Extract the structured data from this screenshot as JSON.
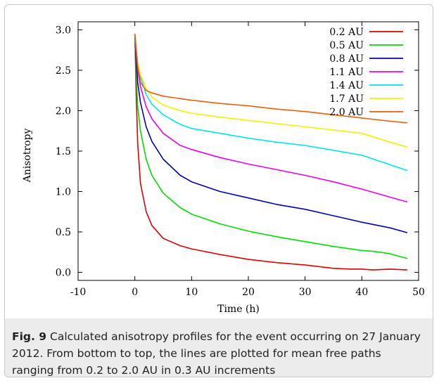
{
  "chart_data": {
    "type": "line",
    "xlabel": "Time (h)",
    "ylabel": "Anisotropy",
    "xlim": [
      -10,
      50
    ],
    "ylim": [
      -0.1,
      3.1
    ],
    "xticks": [
      "-10",
      "0",
      "10",
      "20",
      "30",
      "40",
      "50"
    ],
    "yticks": [
      "0.0",
      "0.5",
      "1.0",
      "1.5",
      "2.0",
      "2.5",
      "3.0"
    ],
    "grid": false,
    "legend_position": "top-right",
    "series": [
      {
        "name": "0.2 AU",
        "color": "#e00000",
        "x": [
          0.0,
          0.2,
          0.5,
          1,
          2,
          3,
          5,
          8,
          10,
          15,
          20,
          25,
          30,
          35,
          38,
          40,
          42,
          45,
          48
        ],
        "y": [
          2.95,
          2.3,
          1.6,
          1.1,
          0.75,
          0.58,
          0.42,
          0.33,
          0.29,
          0.22,
          0.16,
          0.12,
          0.09,
          0.05,
          0.04,
          0.04,
          0.03,
          0.04,
          0.03
        ]
      },
      {
        "name": "0.5 AU",
        "color": "#00dd00",
        "x": [
          0.0,
          0.2,
          0.5,
          1,
          2,
          3,
          5,
          8,
          10,
          15,
          20,
          25,
          30,
          35,
          40,
          42,
          45,
          48
        ],
        "y": [
          2.95,
          2.5,
          2.05,
          1.75,
          1.4,
          1.2,
          0.98,
          0.8,
          0.72,
          0.6,
          0.51,
          0.44,
          0.38,
          0.32,
          0.27,
          0.26,
          0.23,
          0.17
        ]
      },
      {
        "name": "0.8 AU",
        "color": "#0000b8",
        "x": [
          0.0,
          0.2,
          0.5,
          1,
          2,
          3,
          5,
          8,
          10,
          15,
          20,
          25,
          30,
          35,
          40,
          45,
          48
        ],
        "y": [
          2.95,
          2.65,
          2.35,
          2.1,
          1.8,
          1.62,
          1.4,
          1.2,
          1.12,
          1.0,
          0.92,
          0.84,
          0.78,
          0.7,
          0.62,
          0.55,
          0.49
        ]
      },
      {
        "name": "1.1 AU",
        "color": "#ee00ee",
        "x": [
          0.0,
          0.2,
          0.5,
          1,
          2,
          3,
          5,
          8,
          10,
          15,
          20,
          25,
          30,
          35,
          40,
          45,
          48
        ],
        "y": [
          2.95,
          2.75,
          2.5,
          2.3,
          2.05,
          1.9,
          1.72,
          1.57,
          1.52,
          1.42,
          1.34,
          1.27,
          1.2,
          1.12,
          1.03,
          0.93,
          0.87
        ]
      },
      {
        "name": "1.4 AU",
        "color": "#00e6e6",
        "x": [
          0.0,
          0.2,
          0.5,
          1,
          2,
          3,
          5,
          8,
          10,
          15,
          20,
          25,
          30,
          35,
          40,
          45,
          48
        ],
        "y": [
          2.95,
          2.8,
          2.6,
          2.42,
          2.2,
          2.08,
          1.95,
          1.83,
          1.78,
          1.72,
          1.66,
          1.61,
          1.57,
          1.51,
          1.45,
          1.33,
          1.26
        ]
      },
      {
        "name": "1.7 AU",
        "color": "#f2f200",
        "x": [
          0.0,
          0.2,
          0.5,
          1,
          2,
          3,
          5,
          8,
          10,
          15,
          20,
          25,
          30,
          35,
          40,
          45,
          48
        ],
        "y": [
          2.95,
          2.8,
          2.6,
          2.45,
          2.27,
          2.17,
          2.07,
          2.0,
          1.97,
          1.92,
          1.88,
          1.84,
          1.8,
          1.76,
          1.72,
          1.61,
          1.55
        ]
      },
      {
        "name": "2.0 AU",
        "color": "#e8600a",
        "x": [
          0.0,
          0.2,
          0.5,
          1,
          2,
          3,
          5,
          8,
          10,
          15,
          20,
          25,
          30,
          35,
          40,
          45,
          48
        ],
        "y": [
          2.95,
          2.8,
          2.55,
          2.35,
          2.25,
          2.22,
          2.18,
          2.15,
          2.13,
          2.09,
          2.06,
          2.02,
          1.99,
          1.95,
          1.91,
          1.87,
          1.85
        ]
      }
    ]
  },
  "caption": {
    "label": "Fig. 9",
    "text": " Calculated anisotropy profiles for the event occurring on 27 January 2012. From bottom to top, the lines are plotted for mean free paths ranging from 0.2 to 2.0 AU in 0.3 AU increments"
  }
}
